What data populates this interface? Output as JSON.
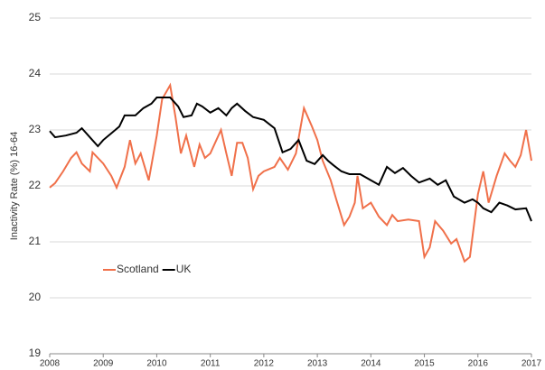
{
  "chart_data": {
    "type": "line",
    "y_label": "Inactivity Rate (%) 16-64",
    "xlim": [
      2008,
      2017
    ],
    "xticks": [
      2008,
      2009,
      2010,
      2011,
      2012,
      2013,
      2014,
      2015,
      2016,
      2017
    ],
    "ylim": [
      19,
      25
    ],
    "yticks": [
      19,
      20,
      21,
      22,
      23,
      24,
      25
    ],
    "grid": true,
    "legend": "lower-left",
    "series": [
      {
        "name": "Scotland",
        "color": "#f0704a",
        "x": [
          2008.0,
          2008.1,
          2008.25,
          2008.4,
          2008.5,
          2008.6,
          2008.75,
          2008.8,
          2009.0,
          2009.15,
          2009.25,
          2009.4,
          2009.5,
          2009.6,
          2009.7,
          2009.85,
          2010.0,
          2010.1,
          2010.25,
          2010.35,
          2010.45,
          2010.55,
          2010.7,
          2010.8,
          2010.9,
          2011.0,
          2011.2,
          2011.3,
          2011.4,
          2011.5,
          2011.6,
          2011.7,
          2011.8,
          2011.9,
          2012.0,
          2012.2,
          2012.3,
          2012.45,
          2012.6,
          2012.75,
          2012.9,
          2013.0,
          2013.1,
          2013.25,
          2013.35,
          2013.5,
          2013.6,
          2013.7,
          2013.75,
          2013.85,
          2014.0,
          2014.15,
          2014.3,
          2014.4,
          2014.5,
          2014.7,
          2014.9,
          2015.0,
          2015.1,
          2015.2,
          2015.35,
          2015.5,
          2015.6,
          2015.75,
          2015.85,
          2016.0,
          2016.1,
          2016.2,
          2016.35,
          2016.5,
          2016.6,
          2016.7,
          2016.8,
          2016.9,
          2017.0
        ],
        "values": [
          21.97,
          22.05,
          22.26,
          22.5,
          22.6,
          22.4,
          22.26,
          22.6,
          22.4,
          22.18,
          21.97,
          22.34,
          22.82,
          22.4,
          22.58,
          22.1,
          22.9,
          23.55,
          23.8,
          23.23,
          22.58,
          22.9,
          22.34,
          22.74,
          22.5,
          22.58,
          23.0,
          22.58,
          22.18,
          22.77,
          22.77,
          22.5,
          21.94,
          22.18,
          22.26,
          22.34,
          22.5,
          22.29,
          22.58,
          23.39,
          23.06,
          22.82,
          22.45,
          22.1,
          21.77,
          21.3,
          21.45,
          21.7,
          22.18,
          21.6,
          21.7,
          21.45,
          21.3,
          21.48,
          21.37,
          21.4,
          21.37,
          20.73,
          20.9,
          21.37,
          21.2,
          20.97,
          21.05,
          20.65,
          20.73,
          21.85,
          22.26,
          21.7,
          22.18,
          22.58,
          22.45,
          22.34,
          22.55,
          23.0,
          22.45
        ]
      },
      {
        "name": "UK",
        "color": "#000000",
        "x": [
          2008.0,
          2008.1,
          2008.3,
          2008.5,
          2008.6,
          2008.75,
          2008.9,
          2009.0,
          2009.15,
          2009.3,
          2009.4,
          2009.6,
          2009.75,
          2009.9,
          2010.0,
          2010.25,
          2010.4,
          2010.5,
          2010.65,
          2010.75,
          2010.85,
          2011.0,
          2011.15,
          2011.3,
          2011.4,
          2011.5,
          2011.65,
          2011.8,
          2012.0,
          2012.2,
          2012.35,
          2012.5,
          2012.65,
          2012.8,
          2012.95,
          2013.1,
          2013.2,
          2013.3,
          2013.45,
          2013.6,
          2013.8,
          2014.0,
          2014.15,
          2014.3,
          2014.45,
          2014.6,
          2014.75,
          2014.9,
          2015.1,
          2015.25,
          2015.4,
          2015.55,
          2015.75,
          2015.9,
          2016.0,
          2016.1,
          2016.25,
          2016.4,
          2016.55,
          2016.7,
          2016.9,
          2017.0
        ],
        "values": [
          22.98,
          22.87,
          22.9,
          22.95,
          23.03,
          22.87,
          22.71,
          22.82,
          22.94,
          23.06,
          23.26,
          23.26,
          23.39,
          23.47,
          23.58,
          23.58,
          23.42,
          23.23,
          23.26,
          23.47,
          23.42,
          23.31,
          23.39,
          23.26,
          23.39,
          23.47,
          23.34,
          23.23,
          23.18,
          23.03,
          22.6,
          22.66,
          22.82,
          22.45,
          22.39,
          22.55,
          22.45,
          22.37,
          22.26,
          22.21,
          22.21,
          22.1,
          22.02,
          22.34,
          22.23,
          22.32,
          22.18,
          22.06,
          22.13,
          22.02,
          22.1,
          21.81,
          21.7,
          21.76,
          21.7,
          21.6,
          21.53,
          21.7,
          21.65,
          21.58,
          21.6,
          21.37
        ]
      }
    ]
  }
}
